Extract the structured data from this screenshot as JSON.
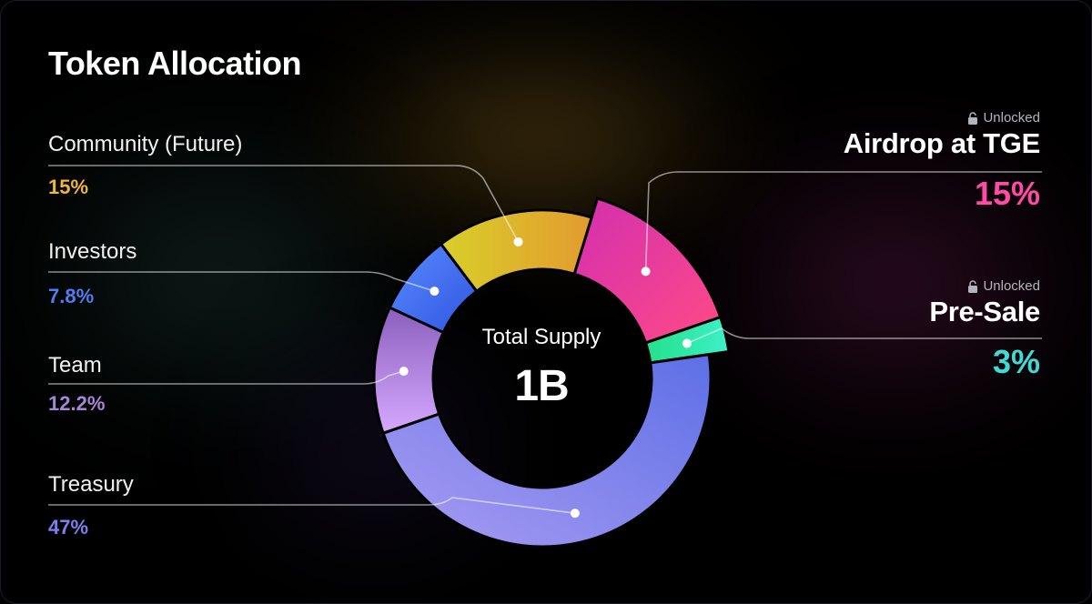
{
  "title": "Token Allocation",
  "center": {
    "label": "Total Supply",
    "value": "1B"
  },
  "left_labels": [
    {
      "name": "Community (Future)",
      "value": "15%",
      "color": "#f2b531"
    },
    {
      "name": "Investors",
      "value": "7.8%",
      "color": "#4f7df0"
    },
    {
      "name": "Team",
      "value": "12.2%",
      "color": "#a786d6"
    },
    {
      "name": "Treasury",
      "value": "47%",
      "color": "#7d7ff0"
    }
  ],
  "right_labels": [
    {
      "status": "Unlocked",
      "name": "Airdrop at TGE",
      "value": "15%",
      "color": "#ff4aa6"
    },
    {
      "status": "Unlocked",
      "name": "Pre-Sale",
      "value": "3%",
      "color": "#3fdad4"
    }
  ],
  "chart_data": {
    "type": "pie",
    "title": "Token Allocation",
    "slices": [
      {
        "label": "Airdrop at TGE",
        "value": 15,
        "color": "#e3399e",
        "exploded": true
      },
      {
        "label": "Pre-Sale",
        "value": 3,
        "color": "#2fe3a3",
        "exploded": true
      },
      {
        "label": "Treasury",
        "value": 47,
        "color": "#8a86ec",
        "exploded": false
      },
      {
        "label": "Team",
        "value": 12.2,
        "color": "#b58ae6",
        "exploded": false
      },
      {
        "label": "Investors",
        "value": 7.8,
        "color": "#3f6ff0",
        "exploded": false
      },
      {
        "label": "Community (Future)",
        "value": 15,
        "color": "#e6b82e",
        "exploded": false
      }
    ]
  }
}
